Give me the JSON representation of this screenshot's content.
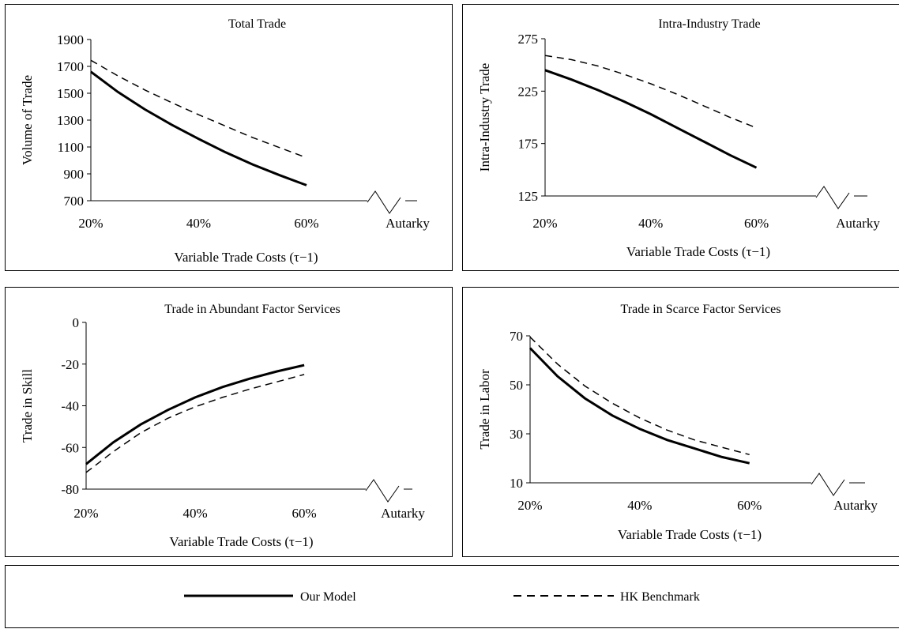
{
  "chart_data": [
    {
      "type": "line",
      "title": "Total Trade",
      "xlabel": "Variable Trade Costs (τ−1)",
      "ylabel": "Volume of Trade",
      "x_ticks": [
        "20%",
        "40%",
        "60%",
        "Autarky"
      ],
      "y_ticks": [
        "700",
        "900",
        "1100",
        "1300",
        "1500",
        "1700",
        "1900"
      ],
      "ylim": [
        700,
        1900
      ],
      "x": [
        20,
        25,
        30,
        35,
        40,
        45,
        50,
        55,
        60
      ],
      "series": [
        {
          "name": "Our Model",
          "style": "solid",
          "values": [
            1660,
            1510,
            1380,
            1265,
            1160,
            1060,
            970,
            890,
            815
          ]
        },
        {
          "name": "HK Benchmark",
          "style": "dashed",
          "values": [
            1745,
            1630,
            1525,
            1430,
            1340,
            1255,
            1170,
            1095,
            1020
          ]
        }
      ]
    },
    {
      "type": "line",
      "title": "Intra-Industry Trade",
      "xlabel": "Variable Trade Costs (τ−1)",
      "ylabel": "Intra-Industry Trade",
      "x_ticks": [
        "20%",
        "40%",
        "60%",
        "Autarky"
      ],
      "y_ticks": [
        "125",
        "175",
        "225",
        "275"
      ],
      "ylim": [
        125,
        275
      ],
      "x": [
        20,
        25,
        30,
        35,
        40,
        45,
        50,
        55,
        60
      ],
      "series": [
        {
          "name": "Our Model",
          "style": "solid",
          "values": [
            245,
            236,
            226,
            215,
            203,
            190,
            177,
            164,
            152
          ]
        },
        {
          "name": "HK Benchmark",
          "style": "dashed",
          "values": [
            259,
            255,
            249,
            241,
            232,
            222,
            211,
            200,
            190
          ]
        }
      ]
    },
    {
      "type": "line",
      "title": "Trade in Abundant Factor Services",
      "xlabel": "Variable Trade Costs (τ−1)",
      "ylabel": "Trade in Skill",
      "x_ticks": [
        "20%",
        "40%",
        "60%",
        "Autarky"
      ],
      "y_ticks": [
        "-80",
        "-60",
        "-40",
        "-20",
        "0"
      ],
      "ylim": [
        -80,
        0
      ],
      "x": [
        20,
        25,
        30,
        35,
        40,
        45,
        50,
        55,
        60
      ],
      "series": [
        {
          "name": "Our Model",
          "style": "solid",
          "values": [
            -68,
            -57.5,
            -49,
            -42,
            -36,
            -31,
            -27,
            -23.5,
            -20.5
          ]
        },
        {
          "name": "HK Benchmark",
          "style": "dashed",
          "values": [
            -72,
            -62,
            -53,
            -46,
            -40.5,
            -36,
            -32,
            -28.5,
            -25
          ]
        }
      ]
    },
    {
      "type": "line",
      "title": "Trade in Scarce Factor Services",
      "xlabel": "Variable Trade Costs (τ−1)",
      "ylabel": "Trade in Labor",
      "x_ticks": [
        "20%",
        "40%",
        "60%",
        "Autarky"
      ],
      "y_ticks": [
        "10",
        "30",
        "50",
        "70"
      ],
      "ylim": [
        10,
        70
      ],
      "x": [
        20,
        25,
        30,
        35,
        40,
        45,
        50,
        55,
        60
      ],
      "series": [
        {
          "name": "Our Model",
          "style": "solid",
          "values": [
            65,
            53.5,
            44.5,
            37.5,
            32,
            27.5,
            24,
            20.5,
            18
          ]
        },
        {
          "name": "HK Benchmark",
          "style": "dashed",
          "values": [
            69.5,
            58.5,
            49.5,
            42.5,
            36.5,
            31.5,
            27.5,
            24.5,
            21.5
          ]
        }
      ]
    }
  ],
  "legend": {
    "our_model": "Our Model",
    "hk_benchmark": "HK Benchmark"
  }
}
